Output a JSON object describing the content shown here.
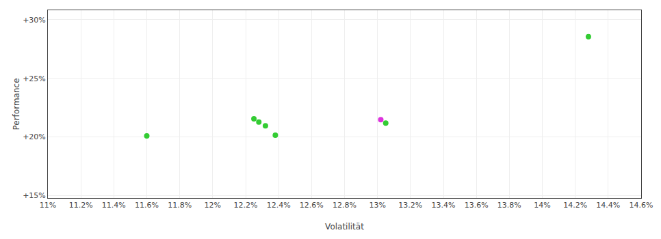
{
  "chart_data": {
    "type": "scatter",
    "xlabel": "Volatilität",
    "ylabel": "Performance",
    "series": [
      {
        "color": "#33cc33",
        "x": [
          0.116,
          0.1225,
          0.1228,
          0.1232,
          0.1238,
          0.1305,
          0.1428
        ],
        "values": [
          0.201,
          0.2155,
          0.2128,
          0.2095,
          0.2015,
          0.2118,
          0.2855
        ]
      },
      {
        "color": "#dd33dd",
        "x": [
          0.1302
        ],
        "values": [
          0.2148
        ]
      }
    ],
    "xlim": [
      0.11,
      0.146
    ],
    "ylim": [
      0.148,
      0.308
    ],
    "xticks": [
      {
        "value": 0.11,
        "label": "11%"
      },
      {
        "value": 0.112,
        "label": "11.2%"
      },
      {
        "value": 0.114,
        "label": "11.4%"
      },
      {
        "value": 0.116,
        "label": "11.6%"
      },
      {
        "value": 0.118,
        "label": "11.8%"
      },
      {
        "value": 0.12,
        "label": "12%"
      },
      {
        "value": 0.122,
        "label": "12.2%"
      },
      {
        "value": 0.124,
        "label": "12.4%"
      },
      {
        "value": 0.126,
        "label": "12.6%"
      },
      {
        "value": 0.128,
        "label": "12.8%"
      },
      {
        "value": 0.13,
        "label": "13%"
      },
      {
        "value": 0.132,
        "label": "13.2%"
      },
      {
        "value": 0.134,
        "label": "13.4%"
      },
      {
        "value": 0.136,
        "label": "13.6%"
      },
      {
        "value": 0.138,
        "label": "13.8%"
      },
      {
        "value": 0.14,
        "label": "14%"
      },
      {
        "value": 0.142,
        "label": "14.2%"
      },
      {
        "value": 0.144,
        "label": "14.4%"
      },
      {
        "value": 0.146,
        "label": "14.6%"
      }
    ],
    "yticks": [
      {
        "value": 0.15,
        "label": "+15%"
      },
      {
        "value": 0.2,
        "label": "+20%"
      },
      {
        "value": 0.25,
        "label": "+25%"
      },
      {
        "value": 0.3,
        "label": "+30%"
      }
    ],
    "grid": true
  }
}
